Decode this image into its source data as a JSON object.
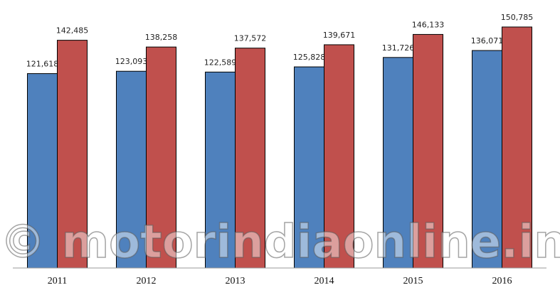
{
  "chart_data": {
    "type": "bar",
    "categories": [
      "2011",
      "2012",
      "2013",
      "2014",
      "2015",
      "2016"
    ],
    "series": [
      {
        "color": "#4f81bd",
        "values": [
          121618,
          123093,
          122589,
          125828,
          131726,
          136071
        ],
        "value_labels": [
          "121,618",
          "123,093",
          "122,589",
          "125,828",
          "131,726",
          "136,071"
        ]
      },
      {
        "color": "#c0504d",
        "values": [
          142485,
          138258,
          137572,
          139671,
          146133,
          150785
        ],
        "value_labels": [
          "142,485",
          "138,258",
          "137,572",
          "139,671",
          "146,133",
          "150,785"
        ]
      }
    ],
    "ylim": [
      0,
      165000
    ],
    "watermark": "© motorindiaonline.in"
  }
}
